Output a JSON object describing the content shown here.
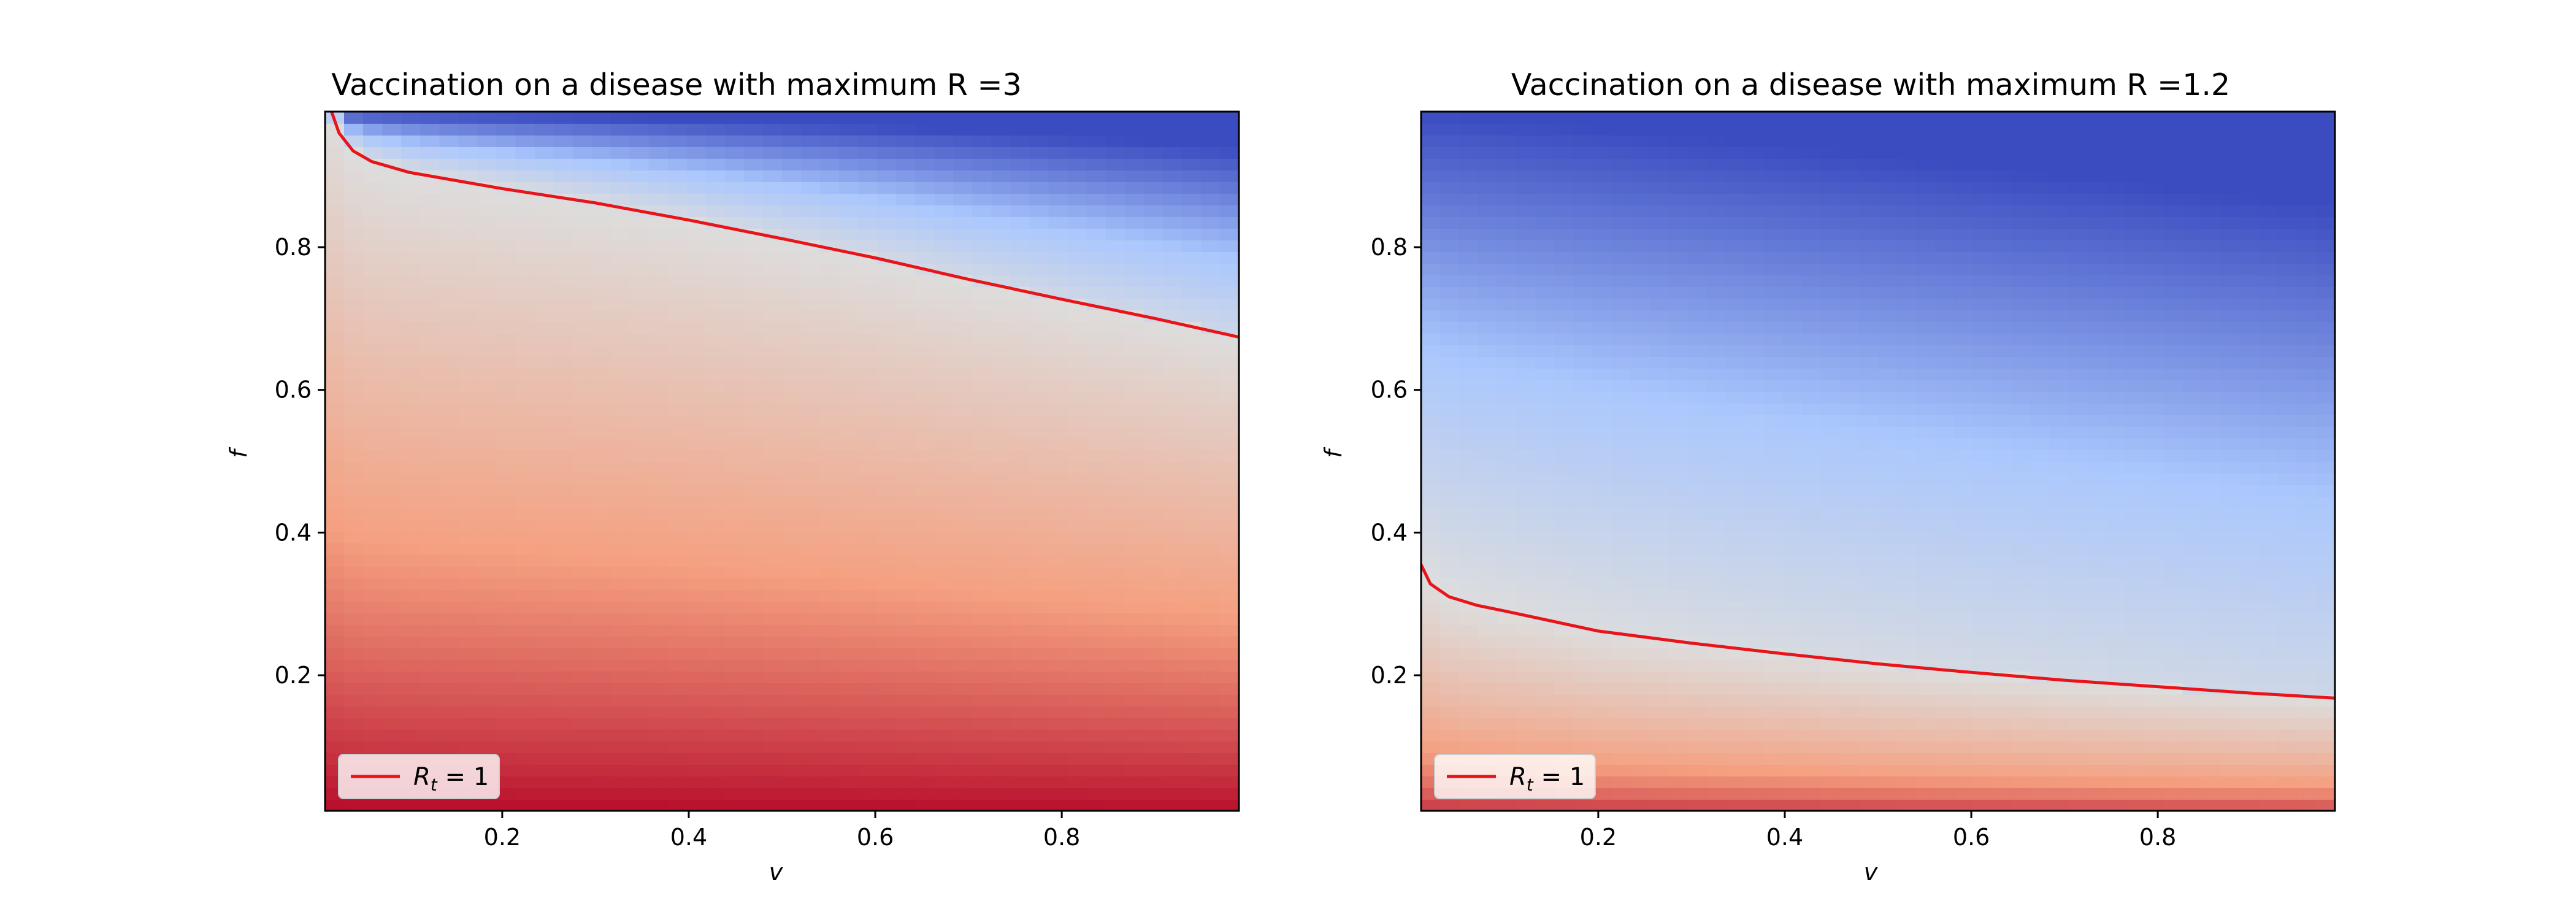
{
  "figure": {
    "background": "#ffffff"
  },
  "colormap": {
    "name": "coolwarm",
    "low_color": "#b40426",
    "mid_color": "#dddddd",
    "high_color": "#3b4cc0"
  },
  "chart_data": [
    {
      "type": "heatmap",
      "title": "Vaccination on a disease with maximum R =3",
      "xlabel": "v",
      "ylabel": "f",
      "xlim": [
        0.01,
        0.99
      ],
      "ylim": [
        0.01,
        0.99
      ],
      "xticks": [
        0.2,
        0.4,
        0.6,
        0.8
      ],
      "yticks": [
        0.2,
        0.4,
        0.6,
        0.8
      ],
      "x_tick_labels": [
        "0.2",
        "0.4",
        "0.6",
        "0.8"
      ],
      "y_tick_labels": [
        "0.2",
        "0.4",
        "0.6",
        "0.8"
      ],
      "field": "Rt",
      "max_R": 3,
      "grid": false,
      "legend": {
        "placement": "lower-left",
        "entries": [
          {
            "label_base": "R",
            "label_sub": "t",
            "label_rest": " = 1",
            "color": "#e8141a"
          }
        ]
      },
      "contour_Rt_equals_1": {
        "color": "#e8141a",
        "points": [
          [
            0.017,
            0.99
          ],
          [
            0.025,
            0.96
          ],
          [
            0.04,
            0.935
          ],
          [
            0.06,
            0.92
          ],
          [
            0.1,
            0.905
          ],
          [
            0.2,
            0.882
          ],
          [
            0.3,
            0.862
          ],
          [
            0.4,
            0.838
          ],
          [
            0.5,
            0.812
          ],
          [
            0.6,
            0.785
          ],
          [
            0.7,
            0.755
          ],
          [
            0.8,
            0.727
          ],
          [
            0.9,
            0.7
          ],
          [
            0.99,
            0.674
          ]
        ]
      }
    },
    {
      "type": "heatmap",
      "title": "Vaccination on a disease with maximum R =1.2",
      "xlabel": "v",
      "ylabel": "f",
      "xlim": [
        0.01,
        0.99
      ],
      "ylim": [
        0.01,
        0.99
      ],
      "xticks": [
        0.2,
        0.4,
        0.6,
        0.8
      ],
      "yticks": [
        0.2,
        0.4,
        0.6,
        0.8
      ],
      "x_tick_labels": [
        "0.2",
        "0.4",
        "0.6",
        "0.8"
      ],
      "y_tick_labels": [
        "0.2",
        "0.4",
        "0.6",
        "0.8"
      ],
      "field": "Rt",
      "max_R": 1.2,
      "grid": false,
      "legend": {
        "placement": "lower-left",
        "entries": [
          {
            "label_base": "R",
            "label_sub": "t",
            "label_rest": " = 1",
            "color": "#e8141a"
          }
        ]
      },
      "contour_Rt_equals_1": {
        "color": "#e8141a",
        "points": [
          [
            0.01,
            0.355
          ],
          [
            0.02,
            0.328
          ],
          [
            0.04,
            0.31
          ],
          [
            0.07,
            0.298
          ],
          [
            0.1,
            0.29
          ],
          [
            0.2,
            0.262
          ],
          [
            0.3,
            0.245
          ],
          [
            0.4,
            0.23
          ],
          [
            0.5,
            0.216
          ],
          [
            0.6,
            0.204
          ],
          [
            0.7,
            0.193
          ],
          [
            0.8,
            0.184
          ],
          [
            0.9,
            0.175
          ],
          [
            0.99,
            0.168
          ]
        ]
      }
    }
  ]
}
